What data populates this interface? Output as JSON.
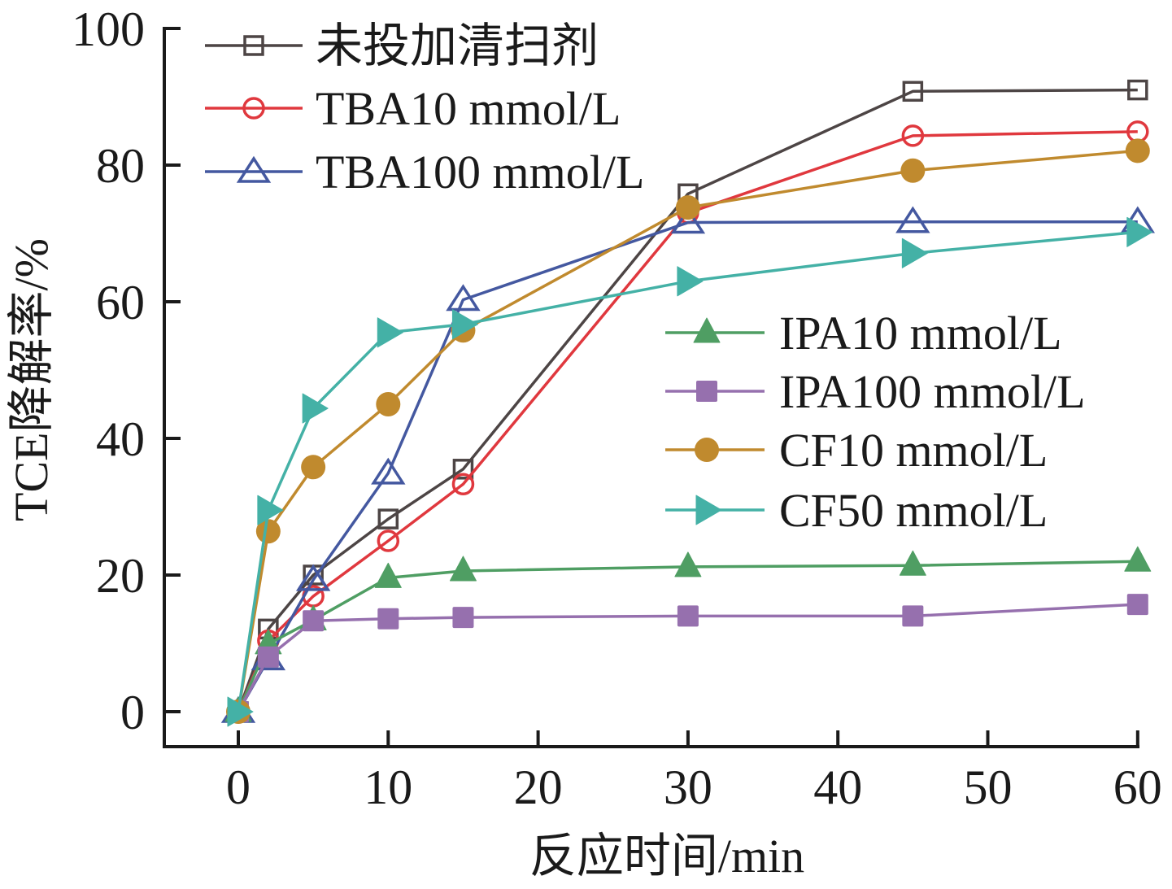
{
  "chart_data": {
    "type": "line",
    "title": "",
    "xlabel": "反应时间/min",
    "ylabel": "TCE降解率/%",
    "xlim": [
      -5,
      60
    ],
    "ylim": [
      -5,
      100
    ],
    "xticks": [
      0,
      10,
      20,
      30,
      40,
      50,
      60
    ],
    "yticks": [
      0,
      20,
      40,
      60,
      80,
      100
    ],
    "grid": false,
    "x": [
      0,
      2,
      5,
      10,
      15,
      30,
      45,
      60
    ],
    "series": [
      {
        "name": "未投加清扫剂",
        "color": "#4d4545",
        "marker": "square-open",
        "values": [
          0,
          12.1,
          20.0,
          28.2,
          35.5,
          75.8,
          90.8,
          91.0
        ]
      },
      {
        "name": "TBA10 mmol/L",
        "color": "#e0383e",
        "marker": "circle-open",
        "values": [
          0,
          10.4,
          16.9,
          25.0,
          33.3,
          73.0,
          84.3,
          84.9
        ]
      },
      {
        "name": "TBA100 mmol/L",
        "color": "#4458a0",
        "marker": "triangle-up-open",
        "values": [
          0,
          7.7,
          19.3,
          34.9,
          60.3,
          71.6,
          71.7,
          71.7
        ]
      },
      {
        "name": "IPA10 mmol/L",
        "color": "#4f9e63",
        "marker": "triangle-up-filled",
        "values": [
          0,
          9.9,
          13.4,
          19.6,
          20.6,
          21.2,
          21.4,
          22.0
        ]
      },
      {
        "name": "IPA100 mmol/L",
        "color": "#9670ae",
        "marker": "square-filled",
        "values": [
          0,
          8.0,
          13.3,
          13.6,
          13.8,
          14.0,
          14.0,
          15.7
        ]
      },
      {
        "name": "CF10 mmol/L",
        "color": "#c08a2e",
        "marker": "circle-filled",
        "values": [
          0,
          26.4,
          35.8,
          45.0,
          55.8,
          73.8,
          79.2,
          82.1
        ]
      },
      {
        "name": "CF50 mmol/L",
        "color": "#44b1a6",
        "marker": "triangle-right-filled",
        "values": [
          0,
          29.5,
          44.4,
          55.5,
          56.7,
          63.0,
          67.1,
          70.2
        ]
      }
    ],
    "legend": [
      {
        "position": "top-left",
        "entries": [
          0,
          1,
          2
        ]
      },
      {
        "position": "center-right",
        "entries": [
          3,
          4,
          5,
          6
        ]
      }
    ]
  }
}
